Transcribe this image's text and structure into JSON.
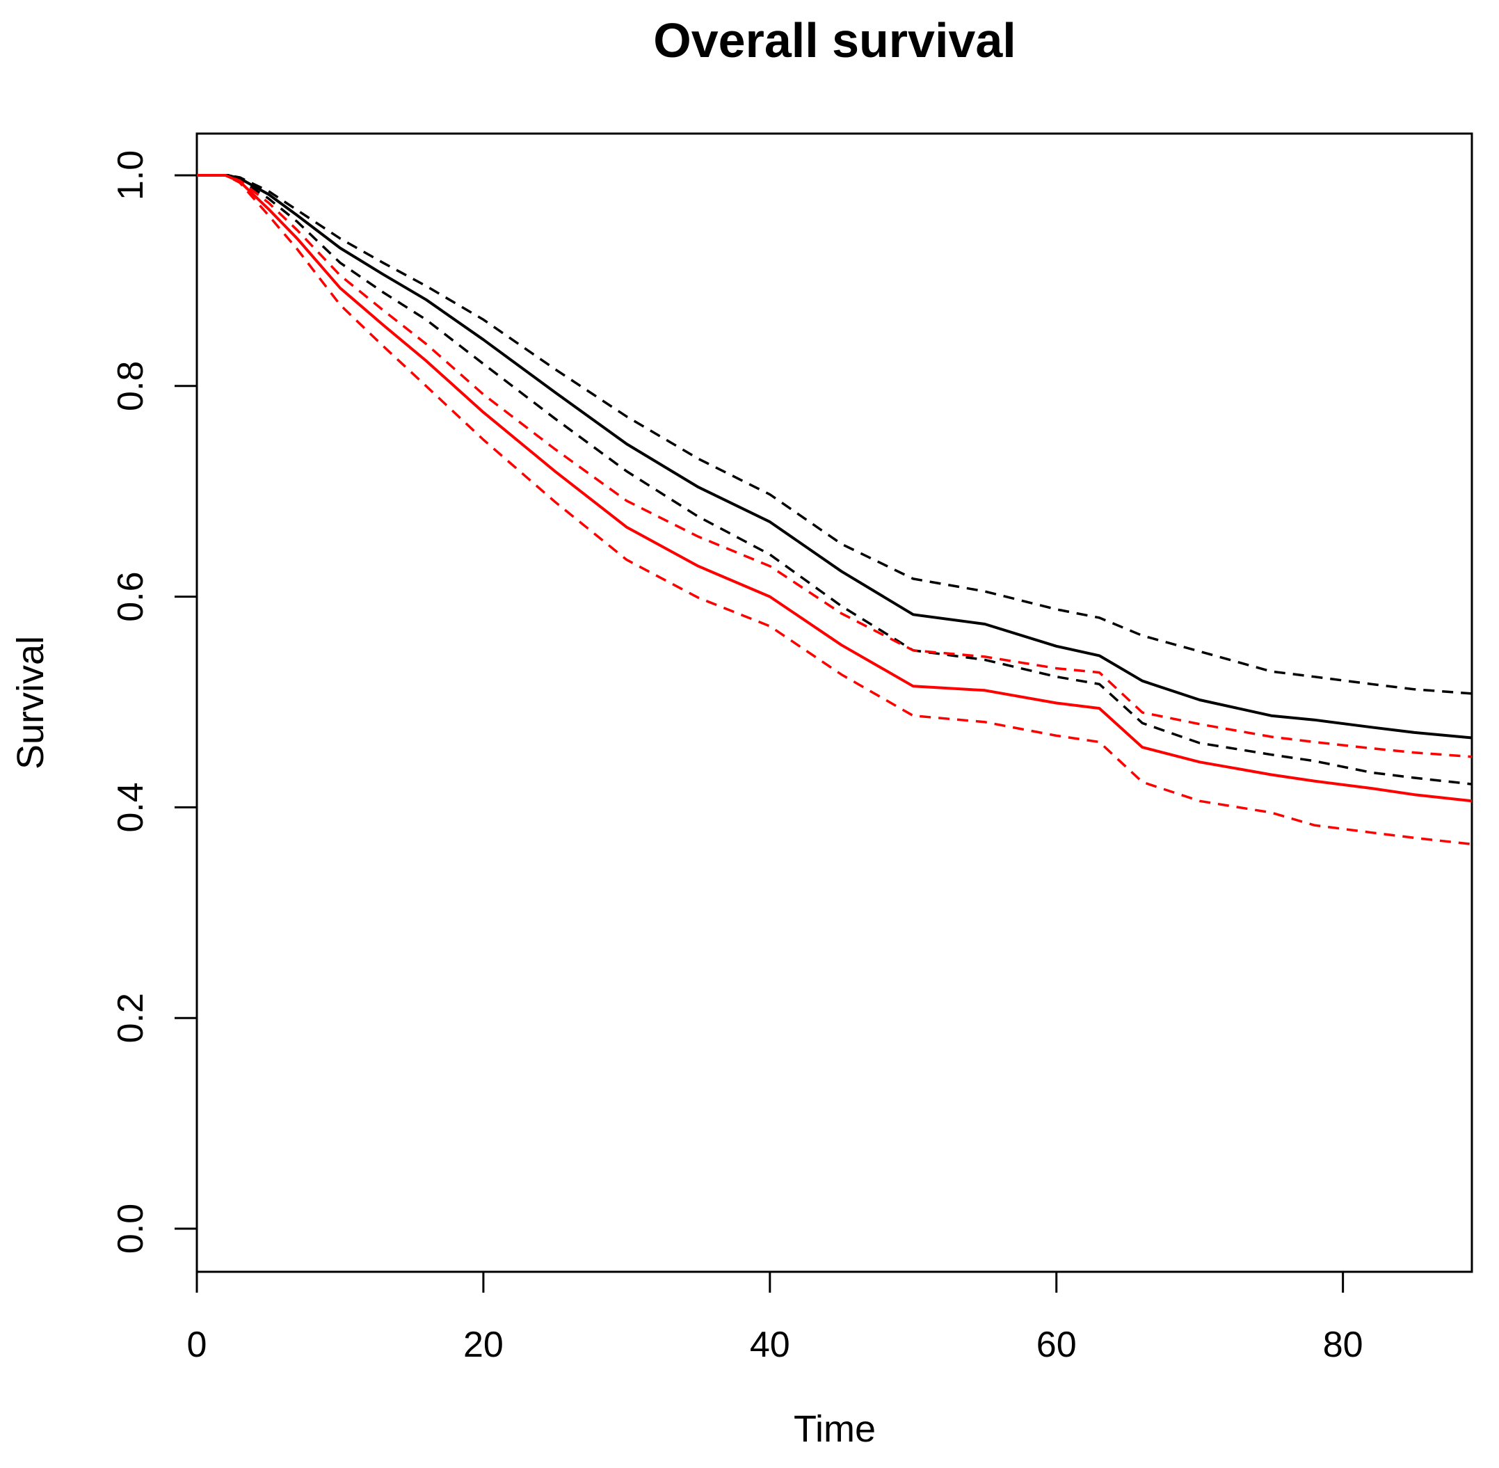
{
  "title": "Overall survival",
  "chart_data": {
    "type": "line",
    "title": "Overall survival",
    "xlabel": "Time",
    "ylabel": "Survival",
    "xlim": [
      0,
      90
    ],
    "ylim": [
      0.0,
      1.0
    ],
    "grid": false,
    "legend": "none",
    "background": "#ffffff",
    "x_ticks": [
      {
        "v": 0,
        "label": "0"
      },
      {
        "v": 20,
        "label": "20"
      },
      {
        "v": 40,
        "label": "40"
      },
      {
        "v": 60,
        "label": "60"
      },
      {
        "v": 80,
        "label": "80"
      }
    ],
    "y_ticks": [
      {
        "v": 0.0,
        "label": "0.0"
      },
      {
        "v": 0.2,
        "label": "0.2"
      },
      {
        "v": 0.4,
        "label": "0.4"
      },
      {
        "v": 0.6,
        "label": "0.6"
      },
      {
        "v": 0.8,
        "label": "0.8"
      },
      {
        "v": 1.0,
        "label": "1.0"
      }
    ],
    "series": [
      {
        "name": "group1-upper-ci",
        "group": "group1",
        "role": "upper-95ci",
        "color": "#000000",
        "line_style": "dashed",
        "points": [
          [
            0,
            1.0
          ],
          [
            2.2,
            1.0
          ],
          [
            3,
            0.998
          ],
          [
            5,
            0.985
          ],
          [
            7,
            0.967
          ],
          [
            10,
            0.94
          ],
          [
            13,
            0.917
          ],
          [
            16,
            0.895
          ],
          [
            20,
            0.863
          ],
          [
            25,
            0.816
          ],
          [
            30,
            0.771
          ],
          [
            35,
            0.731
          ],
          [
            40,
            0.697
          ],
          [
            45,
            0.65
          ],
          [
            50,
            0.617
          ],
          [
            55,
            0.605
          ],
          [
            60,
            0.588
          ],
          [
            63,
            0.58
          ],
          [
            66,
            0.563
          ],
          [
            70,
            0.548
          ],
          [
            75,
            0.529
          ],
          [
            78,
            0.524
          ],
          [
            82,
            0.517
          ],
          [
            85,
            0.512
          ],
          [
            89,
            0.508
          ]
        ]
      },
      {
        "name": "group1-estimate",
        "group": "group1",
        "role": "estimate",
        "color": "#000000",
        "line_style": "solid",
        "points": [
          [
            0,
            1.0
          ],
          [
            2.2,
            1.0
          ],
          [
            3,
            0.997
          ],
          [
            5,
            0.982
          ],
          [
            7,
            0.962
          ],
          [
            10,
            0.931
          ],
          [
            13,
            0.906
          ],
          [
            16,
            0.882
          ],
          [
            20,
            0.844
          ],
          [
            25,
            0.794
          ],
          [
            30,
            0.745
          ],
          [
            35,
            0.704
          ],
          [
            40,
            0.671
          ],
          [
            45,
            0.624
          ],
          [
            50,
            0.583
          ],
          [
            55,
            0.574
          ],
          [
            60,
            0.553
          ],
          [
            63,
            0.544
          ],
          [
            66,
            0.52
          ],
          [
            70,
            0.502
          ],
          [
            75,
            0.487
          ],
          [
            78,
            0.483
          ],
          [
            82,
            0.476
          ],
          [
            85,
            0.471
          ],
          [
            89,
            0.466
          ]
        ]
      },
      {
        "name": "group1-lower-ci",
        "group": "group1",
        "role": "lower-95ci",
        "color": "#000000",
        "line_style": "dashed",
        "points": [
          [
            0,
            1.0
          ],
          [
            2.2,
            1.0
          ],
          [
            3,
            0.996
          ],
          [
            5,
            0.978
          ],
          [
            7,
            0.956
          ],
          [
            10,
            0.917
          ],
          [
            13,
            0.889
          ],
          [
            16,
            0.863
          ],
          [
            20,
            0.821
          ],
          [
            25,
            0.769
          ],
          [
            30,
            0.719
          ],
          [
            35,
            0.676
          ],
          [
            40,
            0.64
          ],
          [
            45,
            0.591
          ],
          [
            50,
            0.549
          ],
          [
            55,
            0.54
          ],
          [
            60,
            0.524
          ],
          [
            63,
            0.517
          ],
          [
            66,
            0.48
          ],
          [
            70,
            0.461
          ],
          [
            75,
            0.45
          ],
          [
            78,
            0.444
          ],
          [
            82,
            0.433
          ],
          [
            85,
            0.428
          ],
          [
            89,
            0.422
          ]
        ]
      },
      {
        "name": "group2-upper-ci",
        "group": "group2",
        "role": "upper-95ci",
        "color": "#ff0000",
        "line_style": "dashed",
        "points": [
          [
            0,
            1.0
          ],
          [
            2,
            1.0
          ],
          [
            3,
            0.995
          ],
          [
            5,
            0.974
          ],
          [
            7,
            0.948
          ],
          [
            10,
            0.905
          ],
          [
            13,
            0.872
          ],
          [
            16,
            0.84
          ],
          [
            20,
            0.792
          ],
          [
            25,
            0.74
          ],
          [
            30,
            0.691
          ],
          [
            35,
            0.657
          ],
          [
            40,
            0.629
          ],
          [
            45,
            0.584
          ],
          [
            50,
            0.549
          ],
          [
            55,
            0.543
          ],
          [
            60,
            0.532
          ],
          [
            63,
            0.528
          ],
          [
            66,
            0.49
          ],
          [
            70,
            0.479
          ],
          [
            75,
            0.467
          ],
          [
            78,
            0.462
          ],
          [
            82,
            0.456
          ],
          [
            85,
            0.452
          ],
          [
            89,
            0.448
          ]
        ]
      },
      {
        "name": "group2-estimate",
        "group": "group2",
        "role": "estimate",
        "color": "#ff0000",
        "line_style": "solid",
        "points": [
          [
            0,
            1.0
          ],
          [
            2,
            1.0
          ],
          [
            3,
            0.994
          ],
          [
            5,
            0.968
          ],
          [
            7,
            0.94
          ],
          [
            10,
            0.893
          ],
          [
            13,
            0.858
          ],
          [
            16,
            0.824
          ],
          [
            20,
            0.775
          ],
          [
            25,
            0.719
          ],
          [
            30,
            0.666
          ],
          [
            35,
            0.629
          ],
          [
            40,
            0.6
          ],
          [
            45,
            0.554
          ],
          [
            50,
            0.515
          ],
          [
            55,
            0.511
          ],
          [
            60,
            0.499
          ],
          [
            63,
            0.494
          ],
          [
            66,
            0.457
          ],
          [
            70,
            0.443
          ],
          [
            75,
            0.431
          ],
          [
            78,
            0.425
          ],
          [
            82,
            0.418
          ],
          [
            85,
            0.412
          ],
          [
            89,
            0.406
          ]
        ]
      },
      {
        "name": "group2-lower-ci",
        "group": "group2",
        "role": "lower-95ci",
        "color": "#ff0000",
        "line_style": "dashed",
        "points": [
          [
            0,
            1.0
          ],
          [
            2,
            1.0
          ],
          [
            3,
            0.993
          ],
          [
            5,
            0.962
          ],
          [
            7,
            0.93
          ],
          [
            10,
            0.877
          ],
          [
            13,
            0.838
          ],
          [
            16,
            0.8
          ],
          [
            20,
            0.749
          ],
          [
            25,
            0.69
          ],
          [
            30,
            0.635
          ],
          [
            35,
            0.599
          ],
          [
            40,
            0.572
          ],
          [
            45,
            0.526
          ],
          [
            50,
            0.487
          ],
          [
            55,
            0.481
          ],
          [
            60,
            0.468
          ],
          [
            63,
            0.462
          ],
          [
            66,
            0.424
          ],
          [
            70,
            0.406
          ],
          [
            75,
            0.395
          ],
          [
            78,
            0.383
          ],
          [
            82,
            0.376
          ],
          [
            85,
            0.371
          ],
          [
            89,
            0.365
          ]
        ]
      }
    ]
  }
}
